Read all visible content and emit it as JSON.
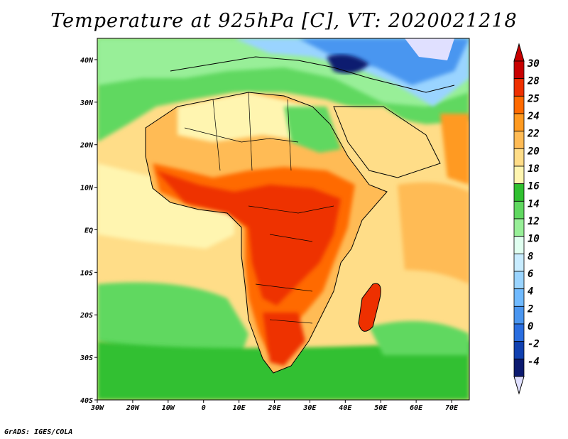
{
  "title": "Temperature at 925hPa [C], VT: 2020021218",
  "footer": "GrADS: IGES/COLA",
  "map": {
    "lon_range": [
      -30,
      75
    ],
    "lat_range": [
      -40,
      45
    ],
    "x_ticks": [
      "30W",
      "20W",
      "10W",
      "0",
      "10E",
      "20E",
      "30E",
      "40E",
      "50E",
      "60E",
      "70E"
    ],
    "y_ticks": [
      "40N",
      "30N",
      "20N",
      "10N",
      "EQ",
      "10S",
      "20S",
      "30S",
      "40S"
    ]
  },
  "colorbar": {
    "levels": [
      "30",
      "28",
      "25",
      "24",
      "22",
      "20",
      "18",
      "16",
      "14",
      "12",
      "10",
      "8",
      "6",
      "4",
      "2",
      "0",
      "-2",
      "-4"
    ],
    "colors": [
      "#c80000",
      "#ee3000",
      "#ff6a00",
      "#ff9a20",
      "#ffbb55",
      "#ffdd88",
      "#fff5b0",
      "#30c030",
      "#60d860",
      "#98ef98",
      "#e0fff0",
      "#c8ecff",
      "#9ad4ff",
      "#70baff",
      "#4a96f0",
      "#2a6ee0",
      "#1040b0",
      "#0c1a70"
    ],
    "under_color": "#e0e0ff"
  },
  "colors": {
    "ocean_warm": "#ffdd88",
    "ocean_mid": "#fff5b0",
    "ocean_cool": "#60d860",
    "land_hot": "#ee3000",
    "land_warm": "#ff6a00",
    "desert": "#ffbb55",
    "mediterranean": "#98ef98",
    "cold": "#4a96f0"
  }
}
